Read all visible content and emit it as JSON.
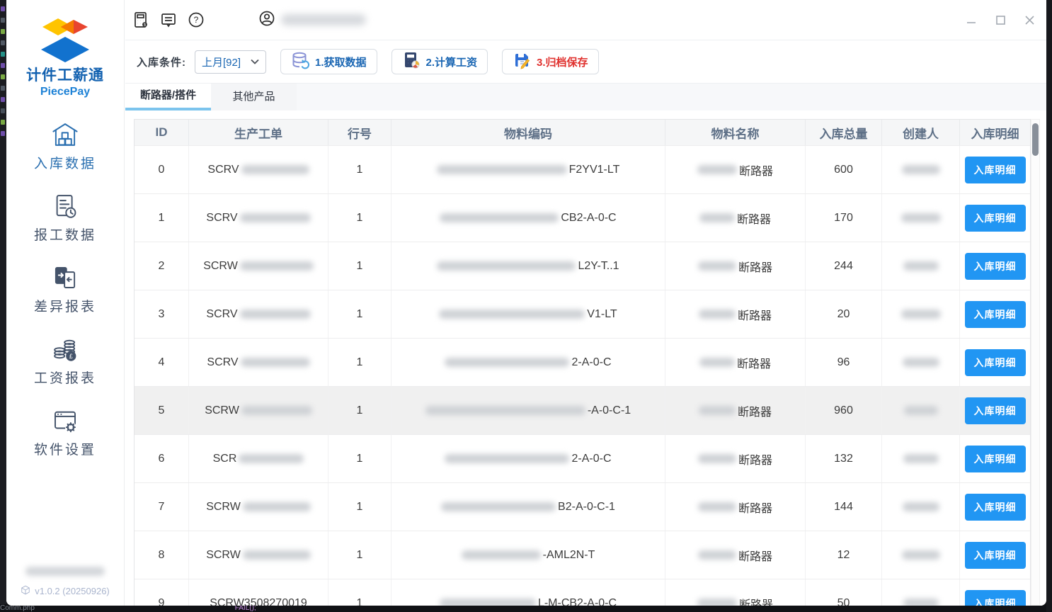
{
  "app": {
    "title": "计件工薪通",
    "subtitle": "PiecePay",
    "version": "v1.0.2 (20250926)"
  },
  "colors": {
    "accent_blue": "#2196f3",
    "nav_active": "#2a6fb0",
    "tab_underline": "#7cc4ed",
    "toolbar_blue": "#1a66b3",
    "toolbar_red": "#e0312e",
    "title_blue": "#1261b0",
    "logo_yellow": "#ffc400",
    "logo_red": "#e8452f",
    "logo_orange": "#f57c00",
    "logo_blue": "#1272ce"
  },
  "background": {
    "bottom_text_left": "Comm.php",
    "bottom_code_fragment": "FAIL();"
  },
  "titlebar": {
    "icons": [
      "calculator-icon",
      "feedback-icon",
      "help-icon"
    ],
    "user_icon": "user-icon",
    "user_name_masked": true,
    "controls": [
      "minimize",
      "maximize",
      "close"
    ]
  },
  "sidebar": {
    "items": [
      {
        "label": "入库数据",
        "icon": "warehouse-icon",
        "active": true
      },
      {
        "label": "报工数据",
        "icon": "work-report-icon",
        "active": false
      },
      {
        "label": "差异报表",
        "icon": "diff-report-icon",
        "active": false
      },
      {
        "label": "工资报表",
        "icon": "salary-report-icon",
        "active": false
      },
      {
        "label": "软件设置",
        "icon": "settings-icon",
        "active": false
      }
    ],
    "company_masked": true
  },
  "toolbar": {
    "filter_label": "入库条件:",
    "filter_value": "上月[92]",
    "buttons": [
      {
        "label": "1.获取数据",
        "icon": "database-icon",
        "color": "blue"
      },
      {
        "label": "2.计算工资",
        "icon": "calc-icon",
        "color": "blue"
      },
      {
        "label": "3.归档保存",
        "icon": "save-icon",
        "color": "red"
      }
    ]
  },
  "tabs": [
    {
      "label": "断路器/搭件",
      "active": true
    },
    {
      "label": "其他产品",
      "active": false
    }
  ],
  "table": {
    "columns": [
      "ID",
      "生产工单",
      "行号",
      "物料编码",
      "物料名称",
      "入库总量",
      "创建人",
      "入库明细"
    ],
    "action_label": "入库明细",
    "rows": [
      {
        "id": "0",
        "order_prefix": "SCRV",
        "order_mask": 96,
        "line": "1",
        "code_mask": 184,
        "code_suffix": "F2YV1-LT",
        "name_mask": 56,
        "name_suffix": "断路器",
        "qty": "600",
        "creator_mask": 54,
        "highlight": false
      },
      {
        "id": "1",
        "order_prefix": "SCRV",
        "order_mask": 100,
        "line": "1",
        "code_mask": 168,
        "code_suffix": "CB2-A-0-C",
        "name_mask": 50,
        "name_suffix": "断路器",
        "qty": "170",
        "creator_mask": 56,
        "highlight": false
      },
      {
        "id": "2",
        "order_prefix": "SCRW",
        "order_mask": 104,
        "line": "1",
        "code_mask": 196,
        "code_suffix": "L2Y-T..1",
        "name_mask": 54,
        "name_suffix": "断路器",
        "qty": "244",
        "creator_mask": 50,
        "highlight": false
      },
      {
        "id": "3",
        "order_prefix": "SCRV",
        "order_mask": 100,
        "line": "1",
        "code_mask": 206,
        "code_suffix": "V1-LT",
        "name_mask": 52,
        "name_suffix": "断路器",
        "qty": "20",
        "creator_mask": 56,
        "highlight": false
      },
      {
        "id": "4",
        "order_prefix": "SCRV",
        "order_mask": 98,
        "line": "1",
        "code_mask": 176,
        "code_suffix": "2-A-0-C",
        "name_mask": 50,
        "name_suffix": "断路器",
        "qty": "96",
        "creator_mask": 52,
        "highlight": false
      },
      {
        "id": "5",
        "order_prefix": "SCRW",
        "order_mask": 100,
        "line": "1",
        "code_mask": 226,
        "code_suffix": "-A-0-C-1",
        "name_mask": 52,
        "name_suffix": "断路器",
        "qty": "960",
        "creator_mask": 48,
        "highlight": true
      },
      {
        "id": "6",
        "order_prefix": "SCR",
        "order_mask": 92,
        "line": "1",
        "code_mask": 176,
        "code_suffix": "2-A-0-C",
        "name_mask": 54,
        "name_suffix": "断路器",
        "qty": "132",
        "creator_mask": 50,
        "highlight": false
      },
      {
        "id": "7",
        "order_prefix": "SCRW",
        "order_mask": 96,
        "line": "1",
        "code_mask": 162,
        "code_suffix": "B2-A-0-C-1",
        "name_mask": 54,
        "name_suffix": "断路器",
        "qty": "144",
        "creator_mask": 52,
        "highlight": false
      },
      {
        "id": "8",
        "order_prefix": "SCRW",
        "order_mask": 96,
        "line": "1",
        "code_mask": 112,
        "code_suffix": "-AML2N-T",
        "name_mask": 54,
        "name_suffix": "断路器",
        "qty": "12",
        "creator_mask": 54,
        "highlight": false
      },
      {
        "id": "9",
        "order_prefix": "SCRW3508270019",
        "order_mask": 0,
        "line": "1",
        "code_mask": 136,
        "code_suffix": "L-M-CB2-A-0-C",
        "name_mask": 56,
        "name_suffix": "断路器",
        "qty": "50",
        "creator_mask": 50,
        "highlight": false
      }
    ]
  }
}
